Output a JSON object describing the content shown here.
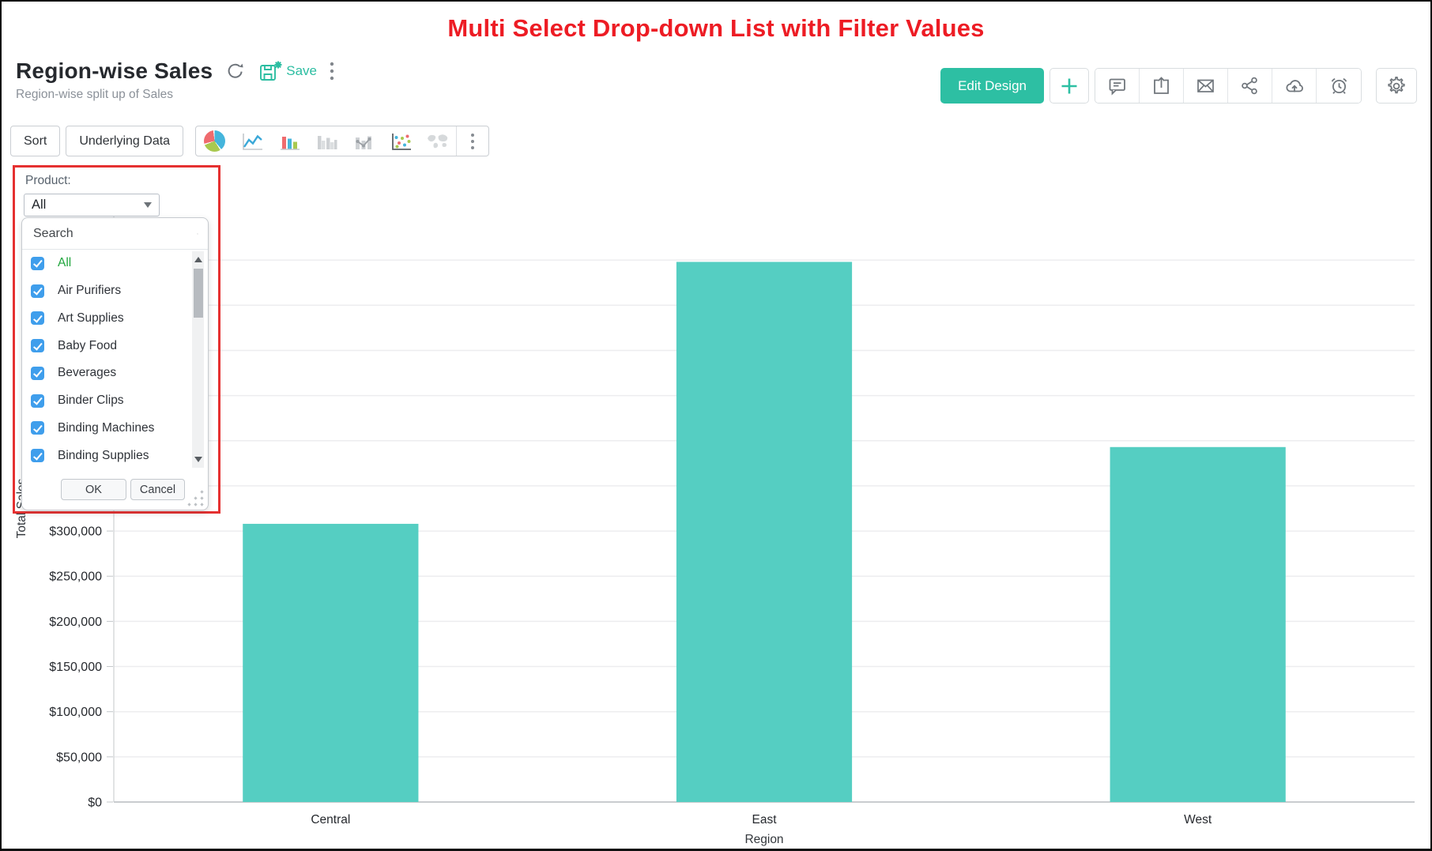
{
  "page": {
    "banner_title": "Multi Select Drop-down List with Filter Values",
    "banner_color": "#ed1c24"
  },
  "header": {
    "title": "Region-wise Sales",
    "subtitle": "Region-wise split up of Sales",
    "save_label": "Save",
    "edit_design_label": "Edit Design",
    "icons": {
      "title_row": [
        "refresh-icon",
        "save-floppy-icon",
        "kebab-menu-icon"
      ],
      "right_buttons": [
        "plus-icon",
        "comment-icon",
        "export-icon",
        "email-icon",
        "share-icon",
        "cloud-upload-icon",
        "alarm-icon",
        "gear-icon"
      ]
    },
    "accent_color": "#2dbfa3"
  },
  "toolbar": {
    "sort_label": "Sort",
    "underlying_data_label": "Underlying Data",
    "chart_types": [
      "pie",
      "line",
      "bar",
      "grouped-bar",
      "bar-line",
      "scatter",
      "world-map"
    ],
    "more_label": "kebab-menu-icon"
  },
  "filter_panel": {
    "label": "Product:",
    "dropdown_value": "All",
    "search_placeholder": "Search",
    "items": [
      {
        "label": "All",
        "checked": true,
        "highlight": true
      },
      {
        "label": "Air Purifiers",
        "checked": true
      },
      {
        "label": "Art Supplies",
        "checked": true
      },
      {
        "label": "Baby Food",
        "checked": true
      },
      {
        "label": "Beverages",
        "checked": true
      },
      {
        "label": "Binder Clips",
        "checked": true
      },
      {
        "label": "Binding Machines",
        "checked": true
      },
      {
        "label": "Binding Supplies",
        "checked": true
      }
    ],
    "ok_label": "OK",
    "cancel_label": "Cancel",
    "checkbox_color": "#3f9eec",
    "highlight_border_color": "#e53030"
  },
  "chart_data": {
    "type": "bar",
    "title": "",
    "categories": [
      "Central",
      "East",
      "West"
    ],
    "values": [
      308000,
      598000,
      393000
    ],
    "xlabel": "Region",
    "ylabel": "Total Sales",
    "ylim": [
      0,
      650000
    ],
    "ytick_step": 50000,
    "grid_max": 600000,
    "ytick_prefix": "$",
    "bar_color": "#55cec2",
    "grid": true,
    "legend": false
  }
}
